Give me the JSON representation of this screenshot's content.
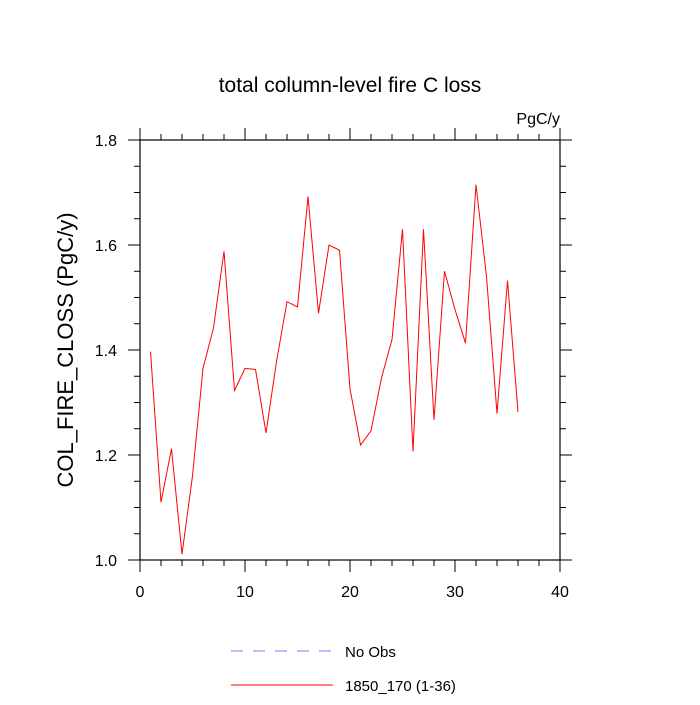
{
  "chart_data": {
    "type": "line",
    "title": "total column-level fire C loss",
    "units_label": "PgC/y",
    "xlabel": "",
    "ylabel": "COL_FIRE_CLOSS  (PgC/y)",
    "xlim": [
      0,
      40
    ],
    "ylim": [
      1.0,
      1.8
    ],
    "x_ticks": [
      0,
      10,
      20,
      30,
      40
    ],
    "x_tick_labels": [
      "0",
      "10",
      "20",
      "30",
      "40"
    ],
    "y_ticks": [
      1.0,
      1.2,
      1.4,
      1.6,
      1.8
    ],
    "y_tick_labels": [
      "1.0",
      "1.2",
      "1.4",
      "1.6",
      "1.8"
    ],
    "grid": false,
    "legend_position": "bottom-center",
    "series": [
      {
        "name": "No Obs",
        "color": "#8080ff",
        "dash": "dashed",
        "x": [],
        "values": []
      },
      {
        "name": "1850_170 (1-36)",
        "color": "#ff0000",
        "dash": "solid",
        "x": [
          1,
          2,
          3,
          4,
          5,
          6,
          7,
          8,
          9,
          10,
          11,
          12,
          13,
          14,
          15,
          16,
          17,
          18,
          19,
          20,
          21,
          22,
          23,
          24,
          25,
          26,
          27,
          28,
          29,
          30,
          31,
          32,
          33,
          34,
          35,
          36
        ],
        "values": [
          1.397,
          1.11,
          1.212,
          1.011,
          1.16,
          1.365,
          1.442,
          1.588,
          1.323,
          1.365,
          1.363,
          1.242,
          1.378,
          1.492,
          1.482,
          1.692,
          1.47,
          1.6,
          1.59,
          1.326,
          1.219,
          1.246,
          1.347,
          1.42,
          1.63,
          1.207,
          1.63,
          1.267,
          1.55,
          1.477,
          1.413,
          1.715,
          1.54,
          1.279,
          1.532,
          1.282
        ]
      }
    ]
  }
}
